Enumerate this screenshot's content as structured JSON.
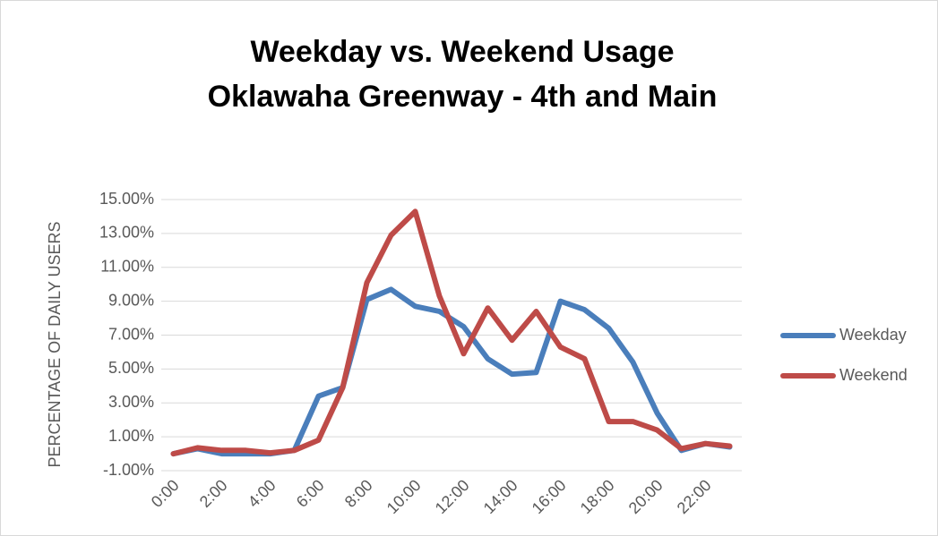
{
  "chart_data": {
    "type": "line",
    "title": [
      "Weekday vs. Weekend Usage",
      "Oklawaha Greenway - 4th and Main"
    ],
    "y_label": "PERCENTAGE OF DAILY USERS",
    "categories": [
      "0:00",
      null,
      "2:00",
      null,
      "4:00",
      null,
      "6:00",
      null,
      "8:00",
      null,
      "10:00",
      null,
      "12:00",
      null,
      "14:00",
      null,
      "16:00",
      null,
      "18:00",
      null,
      "20:00",
      null,
      "22:00",
      null
    ],
    "series": [
      {
        "name": "Weekday",
        "color": "#4a7ebb",
        "values": [
          0,
          0.3,
          0,
          0,
          0,
          0.2,
          3.4,
          3.9,
          9.1,
          9.7,
          8.7,
          8.4,
          7.5,
          5.6,
          4.7,
          4.8,
          9.0,
          8.5,
          7.4,
          5.4,
          2.4,
          0.2,
          0.6,
          0.4
        ]
      },
      {
        "name": "Weekend",
        "color": "#be4b48",
        "values": [
          0,
          0.35,
          0.2,
          0.2,
          0.05,
          0.2,
          0.8,
          3.9,
          10.1,
          12.9,
          14.3,
          9.3,
          5.9,
          8.6,
          6.7,
          8.4,
          6.3,
          5.6,
          1.9,
          1.9,
          1.4,
          0.3,
          0.6,
          0.45
        ]
      }
    ],
    "ylim": [
      -1,
      15
    ],
    "yticks": [
      {
        "value": -1,
        "label": "-1.00%"
      },
      {
        "value": 1,
        "label": "1.00%"
      },
      {
        "value": 3,
        "label": "3.00%"
      },
      {
        "value": 5,
        "label": "5.00%"
      },
      {
        "value": 7,
        "label": "7.00%"
      },
      {
        "value": 9,
        "label": "9.00%"
      },
      {
        "value": 11,
        "label": "11.00%"
      },
      {
        "value": 13,
        "label": "13.00%"
      },
      {
        "value": 15,
        "label": "15.00%"
      }
    ],
    "grid": true,
    "legend": "right"
  }
}
